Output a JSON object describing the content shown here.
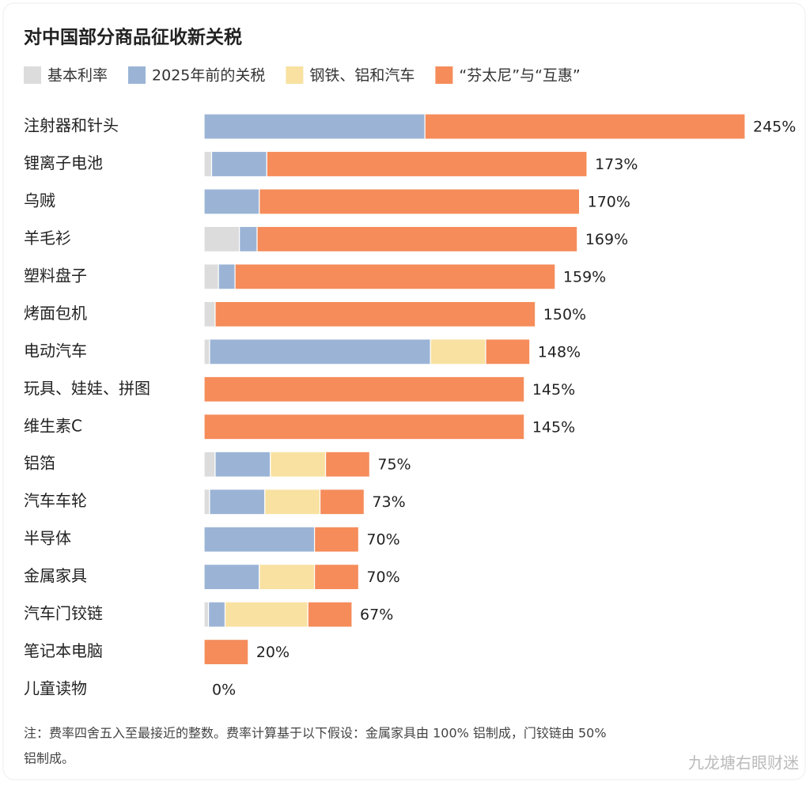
{
  "chart_data": {
    "type": "stacked-bar-horizontal",
    "title": "对中国部分商品征收新关税",
    "categories": [
      "注射器和针头",
      "锂离子电池",
      "乌贼",
      "羊毛衫",
      "塑料盘子",
      "烤面包机",
      "电动汽车",
      "玩具、娃娃、拼图",
      "维生素C",
      "铝箔",
      "汽车车轮",
      "半导体",
      "金属家具",
      "汽车门铰链",
      "笔记本电脑",
      "儿童读物"
    ],
    "series": [
      {
        "name": "基本利率",
        "color": "#dcdcdc",
        "values": [
          0,
          3.4,
          0,
          16,
          6.5,
          5,
          2.5,
          0,
          0,
          5,
          2.5,
          0,
          0,
          2,
          0,
          0
        ]
      },
      {
        "name": "2025年前的关税",
        "color": "#9bb4d6",
        "values": [
          100,
          25,
          25,
          8,
          7.5,
          0,
          100,
          0,
          0,
          25,
          25,
          50,
          25,
          7.5,
          0,
          0
        ]
      },
      {
        "name": "钢铁、铝和汽车",
        "color": "#f8e1a1",
        "values": [
          0,
          0,
          0,
          0,
          0,
          0,
          25,
          0,
          0,
          25,
          25,
          0,
          25,
          37.5,
          0,
          0
        ]
      },
      {
        "name": "“芬太尼”与“互惠”",
        "color": "#f58c5a",
        "values": [
          145,
          145,
          145,
          145,
          145,
          145,
          20,
          145,
          145,
          20,
          20,
          20,
          20,
          20,
          20,
          0
        ]
      }
    ],
    "value_labels": [
      "245%",
      "173%",
      "170%",
      "169%",
      "159%",
      "150%",
      "148%",
      "145%",
      "145%",
      "75%",
      "73%",
      "70%",
      "70%",
      "67%",
      "20%",
      "0%"
    ],
    "note": "注：费率四舍五入至最接近的整数。费率计算基于以下假设：金属家具由 100% 铝制成，门铰链由 50%",
    "note_line2": "铝制成。",
    "watermark": "九龙塘右眼财迷"
  }
}
